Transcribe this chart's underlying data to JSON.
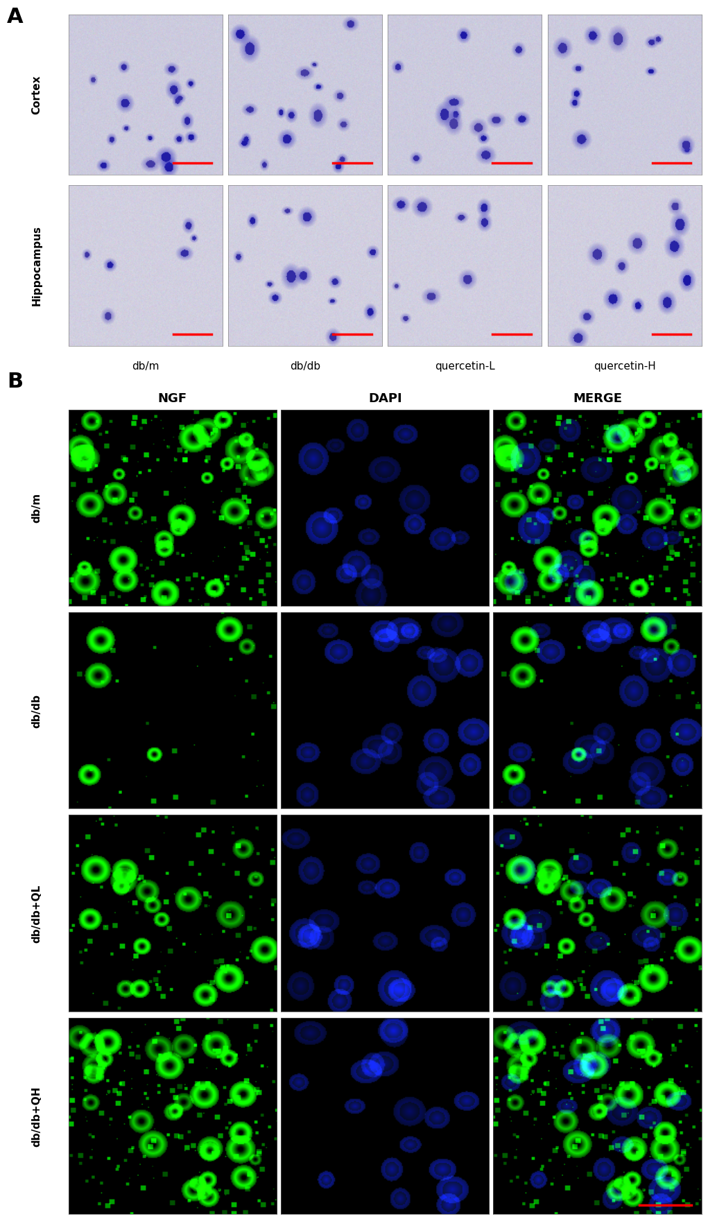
{
  "panel_A": {
    "label": "A",
    "rows": [
      "Cortex",
      "Hippocampus"
    ],
    "cols": [
      "db/m",
      "db/db",
      "quercetin-L",
      "quercetin-H"
    ],
    "bg_color_cortex": "#ccc8d8",
    "bg_color_hippo": "#d0cdd8",
    "scale_bar_color": "#ff0000"
  },
  "panel_B": {
    "label": "B",
    "col_headers": [
      "NGF",
      "DAPI",
      "MERGE"
    ],
    "row_labels": [
      "db/m",
      "db/db",
      "db/db+QL",
      "db/db+QH"
    ],
    "bg_color": "#000000",
    "scale_bar_color": "#ff0000"
  },
  "figure_bg": "#ffffff",
  "panel_label_fontsize": 22,
  "row_label_fontsize": 11,
  "col_label_fontsize": 11,
  "header_fontsize": 13
}
